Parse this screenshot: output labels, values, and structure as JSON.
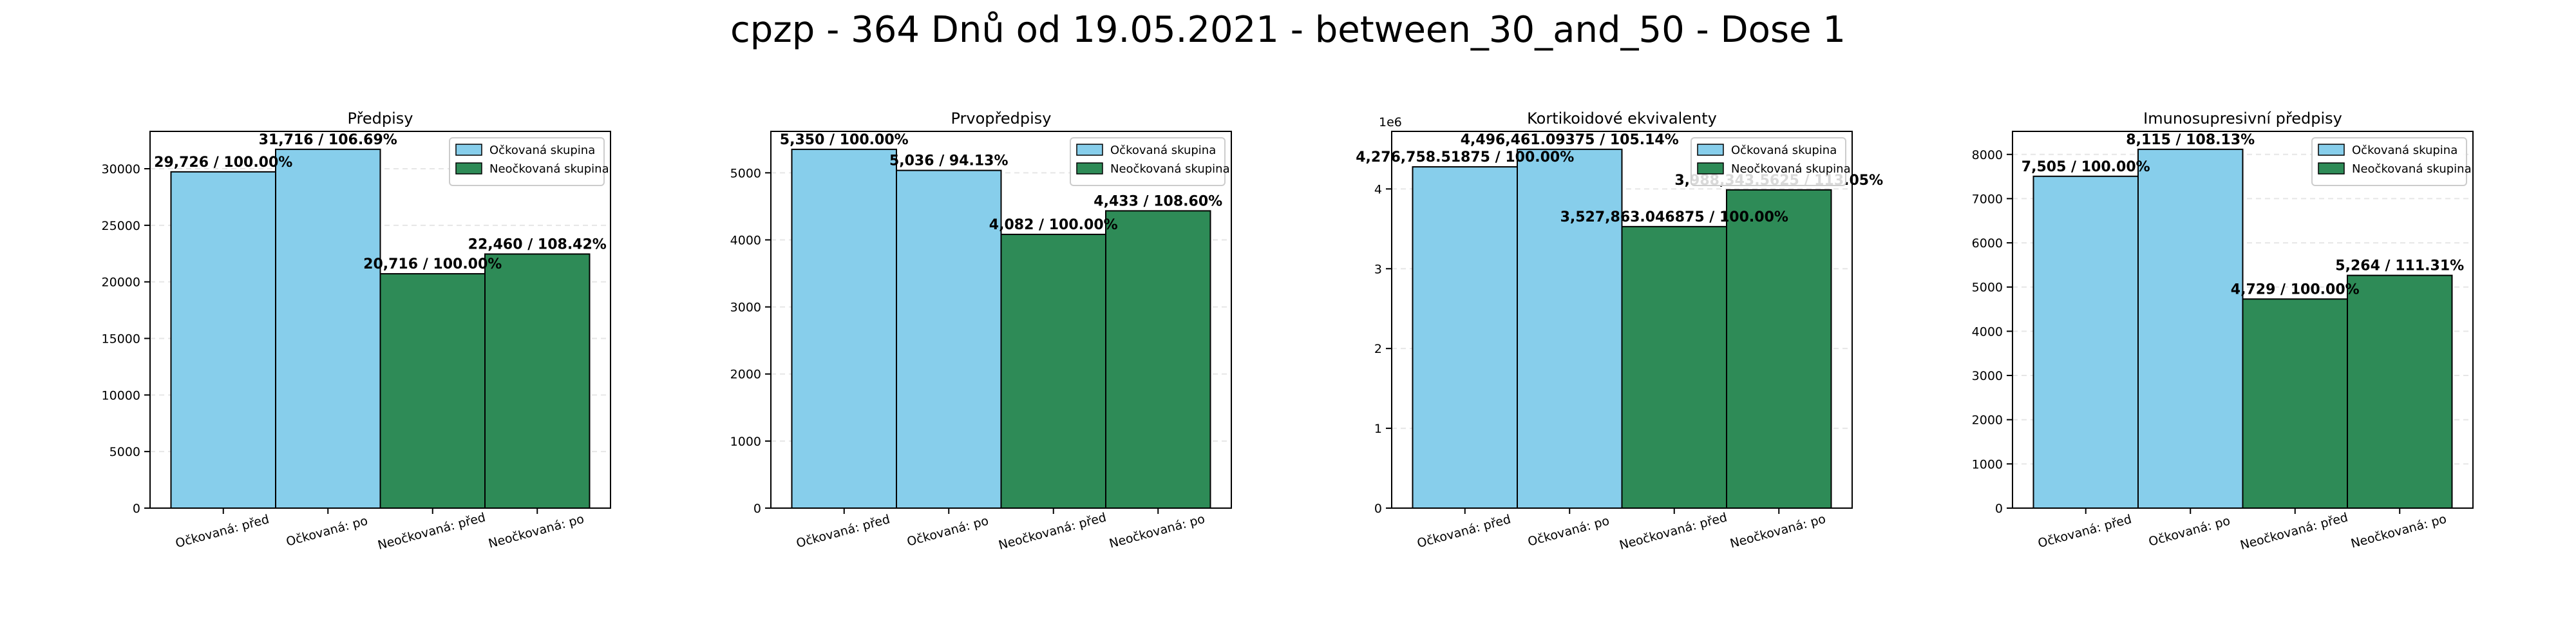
{
  "figure": {
    "title": "cpzp - 364 Dnů od 19.05.2021 - between_30_and_50 - Dose 1"
  },
  "colors": {
    "vaccinated": "#87ceeb",
    "unvaccinated": "#2e8b57",
    "bar_edge": "#000000",
    "grid": "#e6e6e6"
  },
  "chart_data": [
    {
      "type": "bar",
      "title": "Předpisy",
      "categories": [
        "Očkovaná: před",
        "Očkovaná: po",
        "Neočkovaná: před",
        "Neočkovaná: po"
      ],
      "values": [
        29726,
        31716,
        20716,
        22460
      ],
      "bar_labels": [
        "29,726 / 100.00%",
        "31,716 / 106.69%",
        "20,716 / 100.00%",
        "22,460 / 108.42%"
      ],
      "bar_groups": [
        "Očkovaná skupina",
        "Očkovaná skupina",
        "Neočkovaná skupina",
        "Neočkovaná skupina"
      ],
      "yticks": [
        0,
        5000,
        10000,
        15000,
        20000,
        25000,
        30000
      ],
      "ytick_labels": [
        "0",
        "5000",
        "10000",
        "15000",
        "20000",
        "25000",
        "30000"
      ],
      "ylim": [
        0,
        33302
      ],
      "y_offset_label": "",
      "legend": [
        "Očkovaná skupina",
        "Neočkovaná skupina"
      ],
      "legend_position": "top-right",
      "grid": "y-dashed"
    },
    {
      "type": "bar",
      "title": "Prvopředpisy",
      "categories": [
        "Očkovaná: před",
        "Očkovaná: po",
        "Neočkovaná: před",
        "Neočkovaná: po"
      ],
      "values": [
        5350,
        5036,
        4082,
        4433
      ],
      "bar_labels": [
        "5,350 / 100.00%",
        "5,036 / 94.13%",
        "4,082 / 100.00%",
        "4,433 / 108.60%"
      ],
      "bar_groups": [
        "Očkovaná skupina",
        "Očkovaná skupina",
        "Neočkovaná skupina",
        "Neočkovaná skupina"
      ],
      "yticks": [
        0,
        1000,
        2000,
        3000,
        4000,
        5000
      ],
      "ytick_labels": [
        "0",
        "1000",
        "2000",
        "3000",
        "4000",
        "5000"
      ],
      "ylim": [
        0,
        5618
      ],
      "y_offset_label": "",
      "legend": [
        "Očkovaná skupina",
        "Neočkovaná skupina"
      ],
      "legend_position": "top-right",
      "grid": "y-dashed"
    },
    {
      "type": "bar",
      "title": "Kortikoidové ekvivalenty",
      "categories": [
        "Očkovaná: před",
        "Očkovaná: po",
        "Neočkovaná: před",
        "Neočkovaná: po"
      ],
      "values": [
        4276758.51875,
        4496461.09375,
        3527863.046875,
        3988343.5625
      ],
      "bar_labels": [
        "4,276,758.51875 / 100.00%",
        "4,496,461.09375 / 105.14%",
        "3,527,863.046875 / 100.00%",
        "3,988,343.5625 / 113.05%"
      ],
      "bar_groups": [
        "Očkovaná skupina",
        "Očkovaná skupina",
        "Neočkovaná skupina",
        "Neočkovaná skupina"
      ],
      "yticks": [
        0,
        1000000,
        2000000,
        3000000,
        4000000
      ],
      "ytick_labels": [
        "0",
        "1",
        "2",
        "3",
        "4"
      ],
      "ylim": [
        0,
        4721284
      ],
      "y_offset_label": "1e6",
      "legend": [
        "Očkovaná skupina",
        "Neočkovaná skupina"
      ],
      "legend_position": "top-right",
      "grid": "y-dashed"
    },
    {
      "type": "bar",
      "title": "Imunosupresivní předpisy",
      "categories": [
        "Očkovaná: před",
        "Očkovaná: po",
        "Neočkovaná: před",
        "Neočkovaná: po"
      ],
      "values": [
        7505,
        8115,
        4729,
        5264
      ],
      "bar_labels": [
        "7,505 / 100.00%",
        "8,115 / 108.13%",
        "4,729 / 100.00%",
        "5,264 / 111.31%"
      ],
      "bar_groups": [
        "Očkovaná skupina",
        "Očkovaná skupina",
        "Neočkovaná skupina",
        "Neočkovaná skupina"
      ],
      "yticks": [
        0,
        1000,
        2000,
        3000,
        4000,
        5000,
        6000,
        7000,
        8000
      ],
      "ytick_labels": [
        "0",
        "1000",
        "2000",
        "3000",
        "4000",
        "5000",
        "6000",
        "7000",
        "8000"
      ],
      "ylim": [
        0,
        8521
      ],
      "y_offset_label": "",
      "legend": [
        "Očkovaná skupina",
        "Neočkovaná skupina"
      ],
      "legend_position": "top-right",
      "grid": "y-dashed"
    }
  ]
}
